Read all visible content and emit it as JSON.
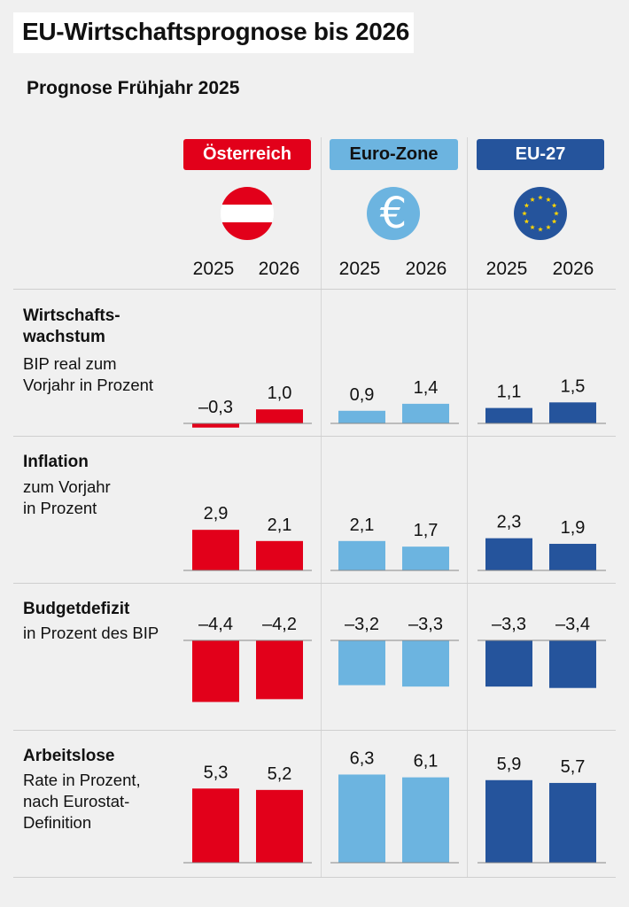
{
  "title": "EU-Wirtschaftsprognose bis 2026",
  "subtitle": "Prognose Frühjahr 2025",
  "regions": [
    {
      "name": "Österreich",
      "color": "#e2001a",
      "icon": "austria-flag-icon"
    },
    {
      "name": "Euro-Zone",
      "color": "#6cb4e0",
      "icon": "euro-icon"
    },
    {
      "name": "EU-27",
      "color": "#25549c",
      "icon": "eu-flag-icon"
    }
  ],
  "euro_symbol": "€",
  "years": [
    "2025",
    "2026"
  ],
  "rows": [
    {
      "title_lines": [
        "Wirtschafts-",
        "wachstum"
      ],
      "desc_lines": [
        "BIP real zum",
        "Vorjahr in Prozent"
      ]
    },
    {
      "title_lines": [
        "Inflation"
      ],
      "desc_lines": [
        "zum Vorjahr",
        "in Prozent"
      ]
    },
    {
      "title_lines": [
        "Budgetdefizit"
      ],
      "desc_lines": [
        "in Prozent des BIP"
      ]
    },
    {
      "title_lines": [
        "Arbeitslose"
      ],
      "desc_lines": [
        "Rate in Prozent,",
        "nach Eurostat-",
        "Definition"
      ]
    }
  ],
  "chart_data": {
    "type": "bar",
    "title": "EU-Wirtschaftsprognose bis 2026",
    "subtitle": "Prognose Frühjahr 2025",
    "categories": [
      "2025",
      "2026"
    ],
    "groups": [
      "Österreich",
      "Euro-Zone",
      "EU-27"
    ],
    "panels": [
      {
        "name": "Wirtschaftswachstum",
        "unit": "BIP real zum Vorjahr in Prozent",
        "series": [
          {
            "name": "Österreich",
            "values": [
              -0.3,
              1.0
            ],
            "labels": [
              "–0,3",
              "1,0"
            ]
          },
          {
            "name": "Euro-Zone",
            "values": [
              0.9,
              1.4
            ],
            "labels": [
              "0,9",
              "1,4"
            ]
          },
          {
            "name": "EU-27",
            "values": [
              1.1,
              1.5
            ],
            "labels": [
              "1,1",
              "1,5"
            ]
          }
        ]
      },
      {
        "name": "Inflation",
        "unit": "zum Vorjahr in Prozent",
        "series": [
          {
            "name": "Österreich",
            "values": [
              2.9,
              2.1
            ],
            "labels": [
              "2,9",
              "2,1"
            ]
          },
          {
            "name": "Euro-Zone",
            "values": [
              2.1,
              1.7
            ],
            "labels": [
              "2,1",
              "1,7"
            ]
          },
          {
            "name": "EU-27",
            "values": [
              2.3,
              1.9
            ],
            "labels": [
              "2,3",
              "1,9"
            ]
          }
        ]
      },
      {
        "name": "Budgetdefizit",
        "unit": "in Prozent des BIP",
        "series": [
          {
            "name": "Österreich",
            "values": [
              -4.4,
              -4.2
            ],
            "labels": [
              "–4,4",
              "–4,2"
            ]
          },
          {
            "name": "Euro-Zone",
            "values": [
              -3.2,
              -3.3
            ],
            "labels": [
              "–3,2",
              "–3,3"
            ]
          },
          {
            "name": "EU-27",
            "values": [
              -3.3,
              -3.4
            ],
            "labels": [
              "–3,3",
              "–3,4"
            ]
          }
        ]
      },
      {
        "name": "Arbeitslose",
        "unit": "Rate in Prozent, nach Eurostat-Definition",
        "series": [
          {
            "name": "Österreich",
            "values": [
              5.3,
              5.2
            ],
            "labels": [
              "5,3",
              "5,2"
            ]
          },
          {
            "name": "Euro-Zone",
            "values": [
              6.3,
              6.1
            ],
            "labels": [
              "6,3",
              "6,1"
            ]
          },
          {
            "name": "EU-27",
            "values": [
              5.9,
              5.7
            ],
            "labels": [
              "5,9",
              "5,7"
            ]
          }
        ]
      }
    ]
  }
}
